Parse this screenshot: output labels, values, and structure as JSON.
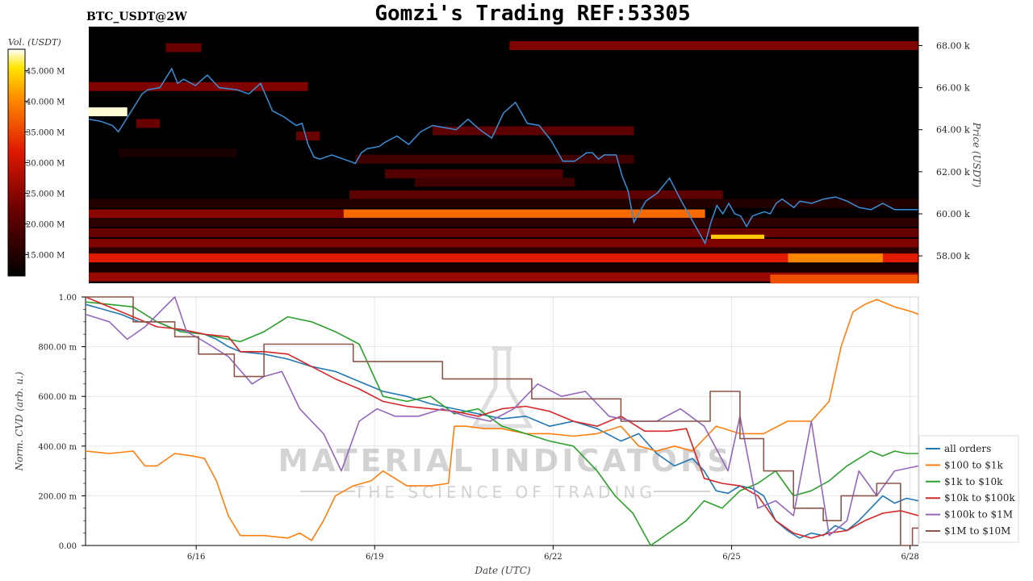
{
  "header": {
    "title": "Gomzi's Trading REF:53305",
    "symbol": "BTC_USDT@2W"
  },
  "colorbar": {
    "label": "Vol. (USDT)",
    "ticks": [
      "45.000 M",
      "40.000 M",
      "35.000 M",
      "30.000 M",
      "25.000 M",
      "20.000 M",
      "15.000 M"
    ],
    "tick_values": [
      45,
      40,
      35,
      30,
      25,
      20,
      15
    ],
    "range": [
      11.5,
      48.5
    ]
  },
  "watermark": {
    "line1": "MATERIAL INDICATORS",
    "line2": "THE SCIENCE OF TRADING"
  },
  "chart_data": [
    {
      "type": "heatmap",
      "title": "",
      "ylabel": "Price (USDT)",
      "y_ticks": [
        "68.00 k",
        "66.00 k",
        "64.00 k",
        "62.00 k",
        "60.00 k",
        "58.00 k"
      ],
      "y_tick_values": [
        68000,
        66000,
        64000,
        62000,
        60000,
        58000
      ],
      "ylim": [
        56700,
        68900
      ],
      "x_range_days": [
        0,
        14
      ],
      "price_series": {
        "color": "#3a8fd8",
        "x": [
          0,
          0.2,
          0.4,
          0.5,
          0.7,
          0.9,
          1.0,
          1.2,
          1.4,
          1.5,
          1.6,
          1.8,
          2.0,
          2.2,
          2.5,
          2.7,
          2.9,
          3.1,
          3.3,
          3.5,
          3.6,
          3.7,
          3.8,
          3.9,
          4.1,
          4.3,
          4.5,
          4.6,
          4.7,
          4.9,
          5.0,
          5.2,
          5.4,
          5.6,
          5.8,
          6.0,
          6.2,
          6.4,
          6.6,
          6.8,
          7.0,
          7.2,
          7.4,
          7.6,
          7.8,
          8.0,
          8.2,
          8.4,
          8.5,
          8.6,
          8.7,
          8.8,
          8.9,
          9.0,
          9.1,
          9.2,
          9.4,
          9.6,
          9.8,
          10.0,
          10.2,
          10.4,
          10.5,
          10.6,
          10.7,
          10.8,
          10.9,
          11.0,
          11.1,
          11.2,
          11.4,
          11.5,
          11.6,
          11.7,
          11.8,
          11.9,
          12.0,
          12.2,
          12.4,
          12.6,
          12.8,
          13.0,
          13.2,
          13.4,
          13.6,
          13.8,
          14.0
        ],
        "y": [
          64500,
          64400,
          64200,
          63900,
          64800,
          65700,
          65900,
          66000,
          66900,
          66200,
          66400,
          66100,
          66600,
          66000,
          65900,
          65700,
          66200,
          64900,
          64600,
          64200,
          64300,
          63300,
          62700,
          62600,
          62800,
          62600,
          62400,
          62900,
          63100,
          63200,
          63400,
          63700,
          63300,
          63900,
          64200,
          64100,
          64000,
          64500,
          64000,
          63600,
          64800,
          65300,
          64300,
          64200,
          63500,
          62500,
          62500,
          62900,
          62900,
          62600,
          62800,
          62800,
          62800,
          61800,
          61100,
          59600,
          60600,
          61000,
          61700,
          60600,
          59600,
          58600,
          59600,
          60400,
          60000,
          60500,
          60000,
          59900,
          59400,
          59900,
          60100,
          60000,
          60500,
          60700,
          60500,
          60300,
          60600,
          60500,
          60700,
          60800,
          60600,
          60300,
          60200,
          60500,
          60200,
          60200,
          60200
        ]
      },
      "heat_bands": [
        {
          "price": 68000,
          "x0": 7.1,
          "x1": 14.0,
          "level": 24
        },
        {
          "price": 67900,
          "x0": 1.3,
          "x1": 1.9,
          "level": 22
        },
        {
          "price": 66050,
          "x0": 0,
          "x1": 3.7,
          "level": 24
        },
        {
          "price": 64850,
          "x0": 0,
          "x1": 0.65,
          "level": 48
        },
        {
          "price": 64300,
          "x0": 0.8,
          "x1": 1.2,
          "level": 22
        },
        {
          "price": 63950,
          "x0": 5.8,
          "x1": 9.2,
          "level": 21
        },
        {
          "price": 63700,
          "x0": 3.5,
          "x1": 3.9,
          "level": 22
        },
        {
          "price": 62900,
          "x0": 0.5,
          "x1": 2.5,
          "level": 14
        },
        {
          "price": 62600,
          "x0": 4.5,
          "x1": 9.2,
          "level": 18
        },
        {
          "price": 61900,
          "x0": 5.0,
          "x1": 8.0,
          "level": 20
        },
        {
          "price": 61500,
          "x0": 5.5,
          "x1": 8.2,
          "level": 18
        },
        {
          "price": 60900,
          "x0": 4.4,
          "x1": 10.7,
          "level": 21
        },
        {
          "price": 60500,
          "x0": 0,
          "x1": 14.0,
          "level": 15
        },
        {
          "price": 60000,
          "x0": 0,
          "x1": 4.3,
          "level": 25
        },
        {
          "price": 60000,
          "x0": 4.3,
          "x1": 10.4,
          "level": 38
        },
        {
          "price": 59600,
          "x0": 0,
          "x1": 14.0,
          "level": 16
        },
        {
          "price": 59100,
          "x0": 0,
          "x1": 14.0,
          "level": 22
        },
        {
          "price": 58800,
          "x0": 10.5,
          "x1": 11.4,
          "level": 44
        },
        {
          "price": 58600,
          "x0": 0,
          "x1": 14.0,
          "level": 24
        },
        {
          "price": 58200,
          "x0": 0,
          "x1": 14.0,
          "level": 16
        },
        {
          "price": 57900,
          "x0": 0,
          "x1": 14.0,
          "level": 32
        },
        {
          "price": 57900,
          "x0": 11.8,
          "x1": 13.4,
          "level": 40
        },
        {
          "price": 57400,
          "x0": 0,
          "x1": 14.0,
          "level": 14
        },
        {
          "price": 57000,
          "x0": 0,
          "x1": 14.0,
          "level": 26
        },
        {
          "price": 56900,
          "x0": 11.5,
          "x1": 14.0,
          "level": 36
        }
      ]
    },
    {
      "type": "line",
      "title": "",
      "xlabel": "Date (UTC)",
      "ylabel": "Norm. CVD (arb. u.)",
      "x_ticks": [
        "6/16",
        "6/19",
        "6/22",
        "6/25",
        "6/28"
      ],
      "x_tick_values": [
        1.86,
        4.86,
        7.86,
        10.86,
        13.86
      ],
      "xlim": [
        0,
        14.0
      ],
      "y_ticks": [
        "1.00",
        "800.00 m",
        "600.00 m",
        "400.00 m",
        "200.00 m",
        "0.00"
      ],
      "y_tick_values": [
        1.0,
        0.8,
        0.6,
        0.4,
        0.2,
        0.0
      ],
      "ylim": [
        0,
        1.0
      ],
      "grid": true,
      "legend_position": "bottom-right",
      "series": [
        {
          "name": "all orders",
          "color": "#1f77b4",
          "step": false,
          "x": [
            0,
            0.3,
            0.6,
            0.9,
            1.2,
            1.5,
            1.8,
            2.0,
            2.2,
            2.4,
            2.6,
            3.0,
            3.4,
            3.8,
            4.2,
            4.6,
            5.0,
            5.4,
            5.8,
            6.2,
            6.6,
            7.0,
            7.4,
            7.8,
            8.2,
            8.6,
            9.0,
            9.3,
            9.6,
            9.9,
            10.2,
            10.4,
            10.6,
            10.8,
            11.0,
            11.2,
            11.4,
            11.6,
            11.8,
            12.0,
            12.2,
            12.4,
            12.6,
            12.8,
            13.0,
            13.2,
            13.4,
            13.6,
            13.8,
            14.0
          ],
          "y": [
            0.97,
            0.95,
            0.93,
            0.9,
            0.9,
            0.87,
            0.86,
            0.85,
            0.83,
            0.8,
            0.78,
            0.77,
            0.75,
            0.72,
            0.7,
            0.66,
            0.62,
            0.6,
            0.57,
            0.55,
            0.53,
            0.51,
            0.52,
            0.48,
            0.5,
            0.47,
            0.42,
            0.45,
            0.37,
            0.32,
            0.35,
            0.3,
            0.22,
            0.21,
            0.24,
            0.23,
            0.2,
            0.1,
            0.06,
            0.03,
            0.05,
            0.04,
            0.08,
            0.06,
            0.1,
            0.15,
            0.2,
            0.17,
            0.19,
            0.18
          ]
        },
        {
          "name": "$100 to $1k",
          "color": "#ff7f0e",
          "step": false,
          "x": [
            0,
            0.4,
            0.8,
            1.0,
            1.2,
            1.5,
            1.8,
            2.0,
            2.2,
            2.4,
            2.6,
            3.0,
            3.4,
            3.6,
            3.8,
            4.0,
            4.2,
            4.5,
            4.8,
            5.0,
            5.4,
            5.8,
            6.1,
            6.2,
            6.4,
            6.7,
            7.0,
            7.4,
            7.8,
            8.2,
            8.6,
            9.0,
            9.3,
            9.6,
            9.9,
            10.2,
            10.6,
            11.0,
            11.4,
            11.8,
            12.2,
            12.5,
            12.7,
            12.9,
            13.1,
            13.3,
            13.6,
            13.9,
            14.0
          ],
          "y": [
            0.38,
            0.37,
            0.38,
            0.32,
            0.32,
            0.37,
            0.36,
            0.35,
            0.26,
            0.12,
            0.04,
            0.04,
            0.03,
            0.05,
            0.02,
            0.1,
            0.2,
            0.24,
            0.26,
            0.3,
            0.24,
            0.24,
            0.25,
            0.48,
            0.48,
            0.47,
            0.47,
            0.45,
            0.45,
            0.44,
            0.45,
            0.48,
            0.4,
            0.38,
            0.4,
            0.38,
            0.48,
            0.45,
            0.45,
            0.5,
            0.5,
            0.58,
            0.8,
            0.94,
            0.97,
            0.99,
            0.96,
            0.94,
            0.93
          ]
        },
        {
          "name": "$1k to $10k",
          "color": "#2ca02c",
          "step": false,
          "x": [
            0,
            0.4,
            0.8,
            1.2,
            1.6,
            2.0,
            2.2,
            2.6,
            3.0,
            3.4,
            3.8,
            4.2,
            4.6,
            5.0,
            5.4,
            5.8,
            6.2,
            6.6,
            7.0,
            7.4,
            7.8,
            8.2,
            8.6,
            8.9,
            9.2,
            9.5,
            9.8,
            10.1,
            10.4,
            10.7,
            11.0,
            11.3,
            11.6,
            11.9,
            12.2,
            12.5,
            12.8,
            13.0,
            13.2,
            13.4,
            13.6,
            13.8,
            14.0
          ],
          "y": [
            0.98,
            0.97,
            0.96,
            0.9,
            0.86,
            0.85,
            0.84,
            0.82,
            0.86,
            0.92,
            0.9,
            0.86,
            0.81,
            0.6,
            0.58,
            0.6,
            0.53,
            0.55,
            0.48,
            0.45,
            0.42,
            0.4,
            0.3,
            0.2,
            0.13,
            0.0,
            0.05,
            0.1,
            0.18,
            0.15,
            0.22,
            0.25,
            0.3,
            0.2,
            0.22,
            0.26,
            0.32,
            0.35,
            0.38,
            0.36,
            0.38,
            0.37,
            0.37
          ]
        },
        {
          "name": "$10k to $100k",
          "color": "#d62728",
          "step": false,
          "x": [
            0,
            0.4,
            0.8,
            1.2,
            1.6,
            2.0,
            2.4,
            2.6,
            3.0,
            3.4,
            3.8,
            4.2,
            4.6,
            5.0,
            5.4,
            5.8,
            6.2,
            6.6,
            7.0,
            7.4,
            7.8,
            8.2,
            8.6,
            9.0,
            9.4,
            9.8,
            10.1,
            10.4,
            10.7,
            11.0,
            11.3,
            11.6,
            11.9,
            12.2,
            12.5,
            12.8,
            13.1,
            13.4,
            13.7,
            14.0
          ],
          "y": [
            1.0,
            0.96,
            0.92,
            0.88,
            0.87,
            0.85,
            0.84,
            0.78,
            0.78,
            0.77,
            0.72,
            0.67,
            0.63,
            0.58,
            0.56,
            0.55,
            0.54,
            0.52,
            0.55,
            0.56,
            0.54,
            0.5,
            0.48,
            0.52,
            0.46,
            0.46,
            0.47,
            0.27,
            0.25,
            0.24,
            0.2,
            0.1,
            0.05,
            0.03,
            0.05,
            0.06,
            0.1,
            0.13,
            0.14,
            0.12
          ]
        },
        {
          "name": "$100k to $1M",
          "color": "#9467bd",
          "step": false,
          "x": [
            0,
            0.4,
            0.7,
            1.0,
            1.5,
            1.7,
            2.0,
            2.4,
            2.8,
            3.0,
            3.3,
            3.6,
            4.0,
            4.3,
            4.6,
            4.9,
            5.2,
            5.6,
            6.0,
            6.4,
            6.8,
            7.2,
            7.6,
            8.0,
            8.4,
            8.8,
            9.2,
            9.6,
            10.0,
            10.4,
            10.8,
            11.0,
            11.3,
            11.6,
            11.9,
            12.2,
            12.5,
            12.8,
            13.0,
            13.3,
            13.6,
            14.0
          ],
          "y": [
            0.93,
            0.9,
            0.83,
            0.88,
            1.0,
            0.86,
            0.82,
            0.76,
            0.65,
            0.68,
            0.7,
            0.55,
            0.45,
            0.3,
            0.5,
            0.55,
            0.52,
            0.52,
            0.55,
            0.52,
            0.5,
            0.55,
            0.65,
            0.6,
            0.62,
            0.52,
            0.5,
            0.5,
            0.55,
            0.48,
            0.3,
            0.52,
            0.15,
            0.18,
            0.12,
            0.5,
            0.04,
            0.1,
            0.3,
            0.2,
            0.3,
            0.32
          ]
        },
        {
          "name": "$1M to $10M",
          "color": "#8c564b",
          "step": true,
          "x": [
            0,
            0.8,
            0.8,
            1.5,
            1.5,
            1.9,
            1.9,
            2.5,
            2.5,
            3.0,
            3.0,
            4.5,
            4.5,
            6.0,
            6.0,
            7.5,
            7.5,
            9.0,
            9.0,
            10.5,
            10.5,
            11.0,
            11.0,
            11.4,
            11.4,
            11.9,
            11.9,
            12.4,
            12.4,
            12.7,
            12.7,
            13.3,
            13.3,
            13.7,
            13.7,
            13.9,
            13.9,
            14.0
          ],
          "y": [
            1.0,
            1.0,
            0.9,
            0.9,
            0.84,
            0.84,
            0.77,
            0.77,
            0.68,
            0.68,
            0.81,
            0.81,
            0.74,
            0.74,
            0.67,
            0.67,
            0.59,
            0.59,
            0.5,
            0.5,
            0.62,
            0.62,
            0.43,
            0.43,
            0.3,
            0.3,
            0.15,
            0.15,
            0.1,
            0.1,
            0.2,
            0.2,
            0.25,
            0.25,
            0.0,
            0.0,
            0.07,
            0.07
          ]
        }
      ]
    }
  ]
}
